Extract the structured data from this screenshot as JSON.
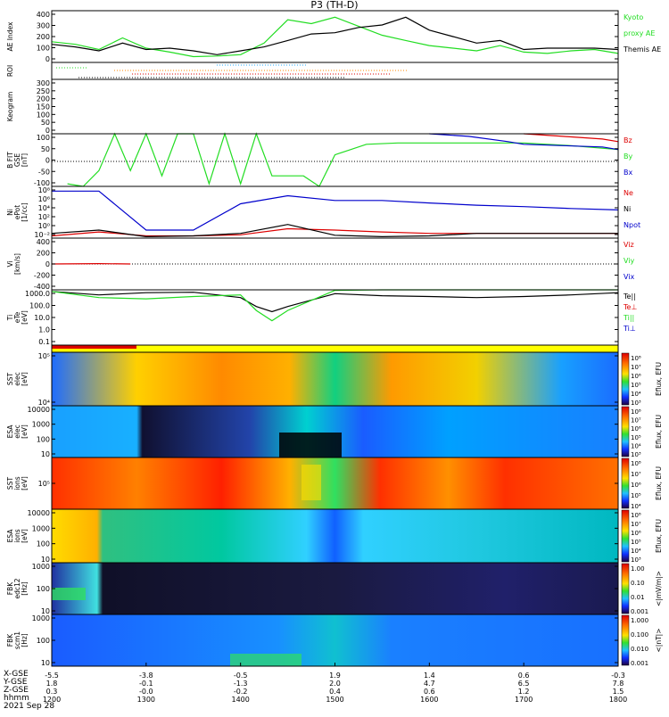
{
  "title": "P3 (TH-D)",
  "colors": {
    "green": "#22dd22",
    "red": "#dd0000",
    "blue": "#0000cc",
    "black": "#000000",
    "orange": "#ff8800",
    "yellow": "#ffff00"
  },
  "panels": [
    {
      "id": "ae",
      "ylabel": [
        "AE Index"
      ],
      "ticks": [
        "400",
        "300",
        "200",
        "100",
        "0"
      ],
      "legend": [
        {
          "text": "Kyoto",
          "color": "#22dd22"
        },
        {
          "text": "proxy AE",
          "color": "#22dd22"
        },
        {
          "text": "Themis AE",
          "color": "#000000"
        }
      ]
    },
    {
      "id": "roi",
      "ylabel": [
        "ROI"
      ],
      "ticks": [],
      "legend": []
    },
    {
      "id": "keogram",
      "ylabel": [
        "Keogram"
      ],
      "ticks": [
        "300",
        "250",
        "200",
        "150",
        "100",
        "50",
        "0"
      ],
      "legend": []
    },
    {
      "id": "bfit",
      "ylabel": [
        "B FIT",
        "GSE",
        "[nT]"
      ],
      "ticks": [
        "100",
        "50",
        "0",
        "-50",
        "-100"
      ],
      "legend": [
        {
          "text": "Bz",
          "color": "#dd0000"
        },
        {
          "text": "By",
          "color": "#22dd22"
        },
        {
          "text": "Bx",
          "color": "#0000cc"
        }
      ]
    },
    {
      "id": "ni",
      "ylabel": [
        "Ni",
        "ePot",
        "[1/cc]"
      ],
      "ticks": [
        "10⁸",
        "10⁶",
        "10⁴",
        "10²",
        "10⁰",
        "10⁻²"
      ],
      "legend": [
        {
          "text": "Ne",
          "color": "#dd0000"
        },
        {
          "text": "Ni",
          "color": "#000000"
        },
        {
          "text": "Npot",
          "color": "#0000cc"
        }
      ]
    },
    {
      "id": "vi",
      "ylabel": [
        "Vi",
        "[km/s]"
      ],
      "ticks": [
        "400",
        "200",
        "0",
        "-200",
        "-400"
      ],
      "legend": [
        {
          "text": "Viz",
          "color": "#dd0000"
        },
        {
          "text": "Viy",
          "color": "#22dd22"
        },
        {
          "text": "Vix",
          "color": "#0000cc"
        }
      ]
    },
    {
      "id": "ti",
      "ylabel": [
        "Ti",
        "eTe",
        "[eV]"
      ],
      "ticks": [
        "1000.0",
        "100.0",
        "10.0",
        "1.0",
        "0.1"
      ],
      "legend": [
        {
          "text": "Te||",
          "color": "#000000"
        },
        {
          "text": "Te⊥",
          "color": "#dd0000"
        },
        {
          "text": "Ti||",
          "color": "#22dd22"
        },
        {
          "text": "Ti⊥",
          "color": "#0000cc"
        }
      ]
    },
    {
      "id": "bar",
      "ylabel": [],
      "ticks": [],
      "legend": []
    },
    {
      "id": "sst_e",
      "ylabel": [
        "SST",
        "elec",
        "[eV]"
      ],
      "ticks": [
        "10⁵",
        "10⁴"
      ],
      "legend": []
    },
    {
      "id": "esa_e",
      "ylabel": [
        "ESA",
        "elec",
        "[eV]"
      ],
      "ticks": [
        "10000",
        "1000",
        "100",
        "10"
      ],
      "legend": []
    },
    {
      "id": "sst_i",
      "ylabel": [
        "SST",
        "ions",
        "[eV]"
      ],
      "ticks": [
        "10⁵"
      ],
      "legend": []
    },
    {
      "id": "esa_i",
      "ylabel": [
        "ESA",
        "ions",
        "[eV]"
      ],
      "ticks": [
        "10000",
        "1000",
        "100",
        "10"
      ],
      "legend": []
    },
    {
      "id": "fbk1",
      "ylabel": [
        "FBK",
        "edc12",
        "[Hz]"
      ],
      "ticks": [
        "1000",
        "100",
        "10"
      ],
      "legend": []
    },
    {
      "id": "fbk2",
      "ylabel": [
        "FBK",
        "scm1",
        "[Hz]"
      ],
      "ticks": [
        "1000",
        "100",
        "10"
      ],
      "legend": []
    }
  ],
  "colorbars": [
    {
      "label": "Eflux, EFU",
      "ticks": [
        "10⁸",
        "10⁷",
        "10⁶",
        "10⁵",
        "10⁴",
        "10³"
      ]
    },
    {
      "label": "Eflux, EFU",
      "ticks": [
        "10⁸",
        "10⁷",
        "10⁶",
        "10⁵",
        "10⁴",
        "10³"
      ]
    },
    {
      "label": "Eflux, EFU",
      "ticks": [
        "10⁸",
        "10⁷",
        "10⁶",
        "10⁵",
        "10⁴"
      ]
    },
    {
      "label": "Eflux, EFU",
      "ticks": [
        "10⁸",
        "10⁷",
        "10⁶",
        "10⁵",
        "10⁴",
        "10³"
      ]
    },
    {
      "label": "<|mV/m|>",
      "ticks": [
        "1.00",
        "0.10",
        "0.01",
        "0.001"
      ]
    },
    {
      "label": "<|nT|>",
      "ticks": [
        "1.000",
        "0.100",
        "0.010",
        "0.001"
      ]
    }
  ],
  "x_axis": {
    "row_labels": [
      "X-GSE",
      "Y-GSE",
      "Z-GSE",
      "hhmm",
      "2021 Sep 28"
    ],
    "columns": [
      [
        "-5.5",
        "1.8",
        "0.3",
        "1200"
      ],
      [
        "-3.8",
        "-0.1",
        "-0.0",
        "1300"
      ],
      [
        "-0.5",
        "-1.3",
        "-0.2",
        "1400"
      ],
      [
        "1.9",
        "2.0",
        "0.4",
        "1500"
      ],
      [
        "1.4",
        "4.7",
        "0.6",
        "1600"
      ],
      [
        "0.6",
        "6.5",
        "1.2",
        "1700"
      ],
      [
        "-0.3",
        "7.8",
        "1.5",
        "1800"
      ]
    ]
  },
  "chart_data": {
    "type": "line",
    "title": "P3 (TH-D)",
    "x": {
      "label": "hhmm",
      "range": [
        "1200",
        "1800"
      ],
      "ticks": [
        "1200",
        "1300",
        "1400",
        "1500",
        "1600",
        "1700",
        "1800"
      ]
    },
    "series": [
      {
        "name": "Kyoto proxy AE",
        "panel": "ae",
        "color": "#22dd22",
        "x": [
          1200,
          1215,
          1230,
          1245,
          1300,
          1315,
          1330,
          1345,
          1400,
          1415,
          1430,
          1445,
          1500,
          1515,
          1530,
          1545,
          1600,
          1615,
          1630,
          1645,
          1700,
          1715,
          1730,
          1745,
          1800
        ],
        "values": [
          160,
          140,
          100,
          190,
          110,
          80,
          45,
          50,
          60,
          150,
          330,
          300,
          350,
          280,
          210,
          170,
          130,
          110,
          90,
          130,
          80,
          70,
          90,
          100,
          70
        ]
      },
      {
        "name": "Themis AE",
        "panel": "ae",
        "color": "#000000",
        "x": [
          1200,
          1215,
          1230,
          1245,
          1300,
          1315,
          1330,
          1345,
          1400,
          1415,
          1430,
          1445,
          1500,
          1515,
          1530,
          1545,
          1600,
          1615,
          1630,
          1645,
          1700,
          1715,
          1730,
          1745,
          1800
        ],
        "values": [
          140,
          120,
          90,
          150,
          100,
          110,
          90,
          60,
          90,
          120,
          170,
          220,
          230,
          270,
          290,
          350,
          250,
          200,
          150,
          170,
          100,
          110,
          110,
          110,
          100
        ]
      },
      {
        "name": "Bz",
        "panel": "bfit",
        "color": "#dd0000",
        "x": [
          1700,
          1725,
          1750,
          1800
        ],
        "values": [
          100,
          90,
          80,
          70
        ]
      },
      {
        "name": "By",
        "panel": "bfit",
        "color": "#22dd22",
        "x": [
          1210,
          1220,
          1230,
          1240,
          1250,
          1300,
          1310,
          1320,
          1330,
          1340,
          1350,
          1400,
          1410,
          1420,
          1430,
          1440,
          1450,
          1500,
          1520,
          1540,
          1600,
          1630,
          1700,
          1730,
          1800
        ],
        "values": [
          -90,
          -100,
          -40,
          100,
          -40,
          100,
          -60,
          100,
          100,
          -90,
          100,
          -90,
          100,
          -60,
          -60,
          -60,
          -100,
          20,
          60,
          65,
          65,
          65,
          65,
          55,
          40
        ]
      },
      {
        "name": "Bx",
        "panel": "bfit",
        "color": "#0000cc",
        "x": [
          1600,
          1625,
          1650,
          1700,
          1725,
          1750,
          1800
        ],
        "values": [
          100,
          90,
          70,
          60,
          55,
          50,
          40
        ]
      },
      {
        "name": "Ne",
        "panel": "ni",
        "color": "#dd0000",
        "x": [
          1200,
          1230,
          1300,
          1330,
          1400,
          1430,
          1500,
          1530,
          1600,
          1630,
          1700,
          1730,
          1800
        ],
        "values": [
          0.003,
          0.02,
          0.003,
          0.003,
          0.005,
          0.1,
          0.05,
          0.02,
          0.01,
          0.01,
          0.01,
          0.01,
          0.01
        ]
      },
      {
        "name": "Ni",
        "panel": "ni",
        "color": "#000000",
        "x": [
          1200,
          1230,
          1300,
          1330,
          1400,
          1430,
          1500,
          1530,
          1600,
          1630,
          1700,
          1730,
          1800
        ],
        "values": [
          0.01,
          0.05,
          0.002,
          0.003,
          0.01,
          0.8,
          0.004,
          0.002,
          0.003,
          0.01,
          0.01,
          0.01,
          0.01
        ]
      },
      {
        "name": "Npot",
        "panel": "ni",
        "color": "#0000cc",
        "x": [
          1200,
          1230,
          1300,
          1330,
          1400,
          1430,
          1500,
          1530,
          1600,
          1630,
          1700,
          1730,
          1800
        ],
        "values": [
          10000000,
          10000000,
          0.05,
          0.05,
          20000,
          1000000,
          100000,
          100000,
          30000,
          10000,
          5000,
          2000,
          1000
        ]
      },
      {
        "name": "Viz",
        "panel": "vi",
        "color": "#dd0000",
        "x": [
          1200,
          1230,
          1250
        ],
        "values": [
          0,
          5,
          0
        ]
      },
      {
        "name": "Te||",
        "panel": "ti",
        "color": "#000000",
        "x": [
          1200,
          1230,
          1300,
          1330,
          1400,
          1410,
          1420,
          1430,
          1500,
          1530,
          1600,
          1630,
          1700,
          1730,
          1800
        ],
        "values": [
          1500,
          800,
          1200,
          1300,
          500,
          100,
          40,
          100,
          1000,
          700,
          600,
          500,
          600,
          800,
          1200
        ]
      },
      {
        "name": "Ti||",
        "panel": "ti",
        "color": "#22dd22",
        "x": [
          1200,
          1230,
          1300,
          1330,
          1400,
          1410,
          1420,
          1430,
          1500,
          1530,
          1600,
          1630,
          1700,
          1730,
          1800
        ],
        "values": [
          1500,
          500,
          400,
          600,
          800,
          50,
          8,
          50,
          1800,
          2000,
          2500,
          2000,
          2500,
          3000,
          3000
        ]
      }
    ]
  }
}
